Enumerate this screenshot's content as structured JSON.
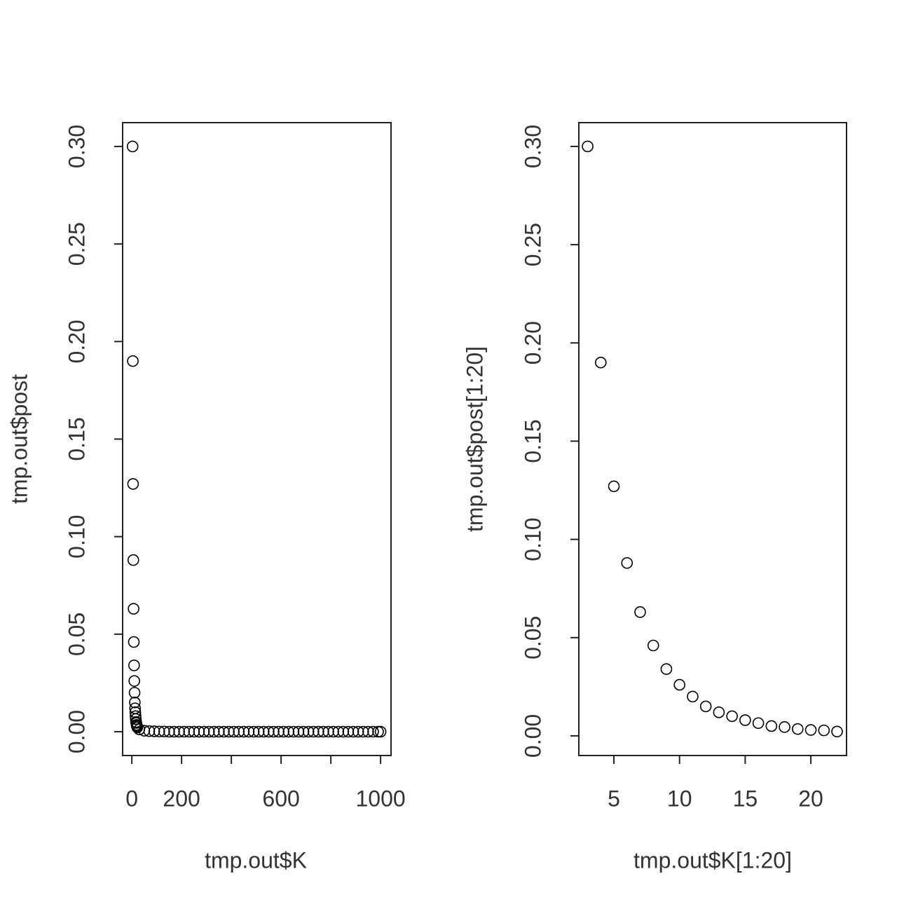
{
  "chart_data": [
    {
      "type": "scatter",
      "xlabel": "tmp.out$K",
      "ylabel": "tmp.out$post",
      "color": "#000000",
      "x": [
        3,
        4,
        5,
        6,
        7,
        8,
        9,
        10,
        11,
        12,
        13,
        14,
        15,
        16,
        17,
        18,
        19,
        20,
        21,
        22,
        30,
        50,
        70,
        90,
        110,
        130,
        150,
        170,
        190,
        210,
        230,
        250,
        270,
        290,
        310,
        330,
        350,
        370,
        390,
        410,
        430,
        450,
        470,
        490,
        510,
        530,
        550,
        570,
        590,
        610,
        630,
        650,
        670,
        690,
        710,
        730,
        750,
        770,
        790,
        810,
        830,
        850,
        870,
        890,
        910,
        930,
        950,
        970,
        990,
        1000
      ],
      "values": [
        0.3,
        0.19,
        0.127,
        0.088,
        0.063,
        0.046,
        0.034,
        0.026,
        0.02,
        0.015,
        0.012,
        0.01,
        0.008,
        0.0065,
        0.005,
        0.0045,
        0.0035,
        0.003,
        0.0028,
        0.0022,
        0.0012,
        0.0005,
        0.0003,
        0.0002,
        0.0001,
        0.0001,
        0,
        0,
        0,
        0,
        0,
        0,
        0,
        0,
        0,
        0,
        0,
        0,
        0,
        0,
        0,
        0,
        0,
        0,
        0,
        0,
        0,
        0,
        0,
        0,
        0,
        0,
        0,
        0,
        0,
        0,
        0,
        0,
        0,
        0,
        0,
        0,
        0,
        0,
        0,
        0,
        0,
        0,
        0,
        0
      ],
      "xlim": [
        -37,
        1042
      ],
      "xticks": [
        0,
        200,
        {
          "value": 400,
          "label": null
        },
        600,
        {
          "value": 800,
          "label": null
        },
        1000
      ],
      "ylim": [
        -0.0122,
        0.3122
      ],
      "yticks": [
        {
          "value": 0,
          "label": "0.00"
        },
        {
          "value": 0.05,
          "label": "0.05"
        },
        {
          "value": 0.1,
          "label": "0.10"
        },
        {
          "value": 0.15,
          "label": "0.15"
        },
        {
          "value": 0.2,
          "label": "0.20"
        },
        {
          "value": 0.25,
          "label": "0.25"
        },
        {
          "value": 0.3,
          "label": "0.30"
        }
      ]
    },
    {
      "type": "scatter",
      "xlabel": "tmp.out$K[1:20]",
      "ylabel": "tmp.out$post[1:20]",
      "color": "#000000",
      "x": [
        3,
        4,
        5,
        6,
        7,
        8,
        9,
        10,
        11,
        12,
        13,
        14,
        15,
        16,
        17,
        18,
        19,
        20,
        21,
        22
      ],
      "values": [
        0.3,
        0.19,
        0.127,
        0.088,
        0.063,
        0.046,
        0.034,
        0.026,
        0.02,
        0.015,
        0.012,
        0.01,
        0.008,
        0.0065,
        0.005,
        0.0045,
        0.0035,
        0.003,
        0.0028,
        0.0022
      ],
      "xlim": [
        2.33,
        22.72
      ],
      "xticks": [
        5,
        10,
        15,
        20
      ],
      "ylim": [
        -0.01,
        0.3121
      ],
      "yticks": [
        {
          "value": 0,
          "label": "0.00"
        },
        {
          "value": 0.05,
          "label": "0.05"
        },
        {
          "value": 0.1,
          "label": "0.10"
        },
        {
          "value": 0.15,
          "label": "0.15"
        },
        {
          "value": 0.2,
          "label": "0.20"
        },
        {
          "value": 0.25,
          "label": "0.25"
        },
        {
          "value": 0.3,
          "label": "0.30"
        }
      ]
    }
  ]
}
